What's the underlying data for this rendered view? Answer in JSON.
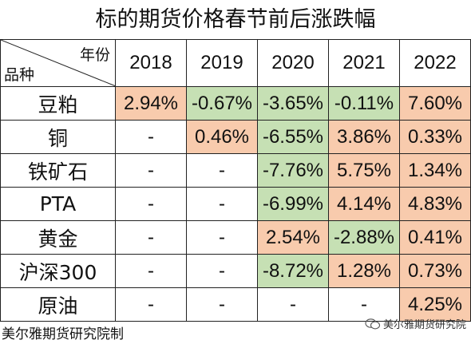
{
  "title": "标的期货价格春节前后涨跌幅",
  "corner": {
    "top": "年份",
    "bottom": "品种"
  },
  "years": [
    "2018",
    "2019",
    "2020",
    "2021",
    "2022"
  ],
  "rows": [
    {
      "name": "豆粕",
      "cells": [
        {
          "v": "2.94%",
          "t": "pos"
        },
        {
          "v": "-0.67%",
          "t": "neg"
        },
        {
          "v": "-3.65%",
          "t": "neg"
        },
        {
          "v": "-0.11%",
          "t": "neg"
        },
        {
          "v": "7.60%",
          "t": "pos"
        }
      ]
    },
    {
      "name": "铜",
      "cells": [
        {
          "v": "-",
          "t": ""
        },
        {
          "v": "0.46%",
          "t": "pos"
        },
        {
          "v": "-6.55%",
          "t": "neg"
        },
        {
          "v": "3.86%",
          "t": "pos"
        },
        {
          "v": "0.33%",
          "t": "pos"
        }
      ]
    },
    {
      "name": "铁矿石",
      "cells": [
        {
          "v": "-",
          "t": ""
        },
        {
          "v": "-",
          "t": ""
        },
        {
          "v": "-7.76%",
          "t": "neg"
        },
        {
          "v": "5.75%",
          "t": "pos"
        },
        {
          "v": "1.34%",
          "t": "pos"
        }
      ]
    },
    {
      "name": "PTA",
      "cells": [
        {
          "v": "-",
          "t": ""
        },
        {
          "v": "-",
          "t": ""
        },
        {
          "v": "-6.99%",
          "t": "neg"
        },
        {
          "v": "4.14%",
          "t": "pos"
        },
        {
          "v": "4.83%",
          "t": "pos"
        }
      ]
    },
    {
      "name": "黄金",
      "cells": [
        {
          "v": "-",
          "t": ""
        },
        {
          "v": "-",
          "t": ""
        },
        {
          "v": "2.54%",
          "t": "pos"
        },
        {
          "v": "-2.88%",
          "t": "neg"
        },
        {
          "v": "0.41%",
          "t": "pos"
        }
      ]
    },
    {
      "name": "沪深300",
      "cells": [
        {
          "v": "-",
          "t": ""
        },
        {
          "v": "-",
          "t": ""
        },
        {
          "v": "-8.72%",
          "t": "neg"
        },
        {
          "v": "1.28%",
          "t": "pos"
        },
        {
          "v": "0.73%",
          "t": "pos"
        }
      ]
    },
    {
      "name": "原油",
      "cells": [
        {
          "v": "-",
          "t": ""
        },
        {
          "v": "-",
          "t": ""
        },
        {
          "v": "-",
          "t": ""
        },
        {
          "v": "-",
          "t": ""
        },
        {
          "v": "4.25%",
          "t": "pos"
        }
      ]
    }
  ],
  "colors": {
    "positive": "#f8cbad",
    "negative": "#c6e0b4"
  },
  "footer": {
    "left": "美尔雅期货研究院制",
    "right": "美尔雅期货研究院",
    "right_icon": "wechat-icon"
  }
}
